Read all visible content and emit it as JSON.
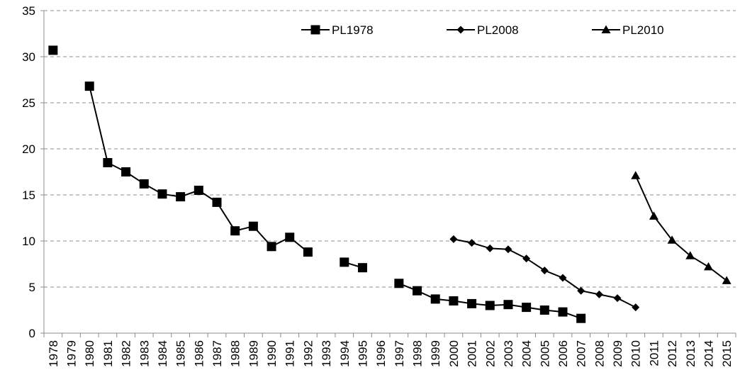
{
  "chart_data": {
    "type": "line",
    "categories": [
      "1978",
      "1979",
      "1980",
      "1981",
      "1982",
      "1983",
      "1984",
      "1985",
      "1986",
      "1987",
      "1988",
      "1989",
      "1990",
      "1991",
      "1992",
      "1993",
      "1994",
      "1995",
      "1996",
      "1997",
      "1998",
      "1999",
      "2000",
      "2001",
      "2002",
      "2003",
      "2004",
      "2005",
      "2006",
      "2007",
      "2008",
      "2009",
      "2010",
      "2011",
      "2012",
      "2013",
      "2014",
      "2015"
    ],
    "series": [
      {
        "name": "PL1978",
        "color": "#000000",
        "marker": "square",
        "values": [
          30.7,
          null,
          26.8,
          18.5,
          17.5,
          16.2,
          15.1,
          14.8,
          15.5,
          14.2,
          11.1,
          11.6,
          9.4,
          10.4,
          8.8,
          null,
          7.7,
          7.1,
          null,
          5.4,
          4.6,
          3.7,
          3.5,
          3.2,
          3.0,
          3.1,
          2.8,
          2.5,
          2.3,
          1.6,
          null,
          null,
          null,
          null,
          null,
          null,
          null,
          null
        ]
      },
      {
        "name": "PL2008",
        "color": "#000000",
        "marker": "diamond",
        "values": [
          null,
          null,
          null,
          null,
          null,
          null,
          null,
          null,
          null,
          null,
          null,
          null,
          null,
          null,
          null,
          null,
          null,
          null,
          null,
          null,
          null,
          null,
          10.2,
          9.8,
          9.2,
          9.1,
          8.1,
          6.8,
          6.0,
          4.6,
          4.2,
          3.8,
          2.8,
          null,
          null,
          null,
          null,
          null
        ]
      },
      {
        "name": "PL2010",
        "color": "#000000",
        "marker": "triangle",
        "values": [
          null,
          null,
          null,
          null,
          null,
          null,
          null,
          null,
          null,
          null,
          null,
          null,
          null,
          null,
          null,
          null,
          null,
          null,
          null,
          null,
          null,
          null,
          null,
          null,
          null,
          null,
          null,
          null,
          null,
          null,
          null,
          null,
          17.1,
          12.7,
          10.1,
          8.4,
          7.2,
          5.7
        ]
      }
    ],
    "ylim": [
      0,
      35
    ],
    "yticks": [
      0,
      5,
      10,
      15,
      20,
      25,
      30,
      35
    ],
    "grid": true,
    "legend": "top"
  }
}
